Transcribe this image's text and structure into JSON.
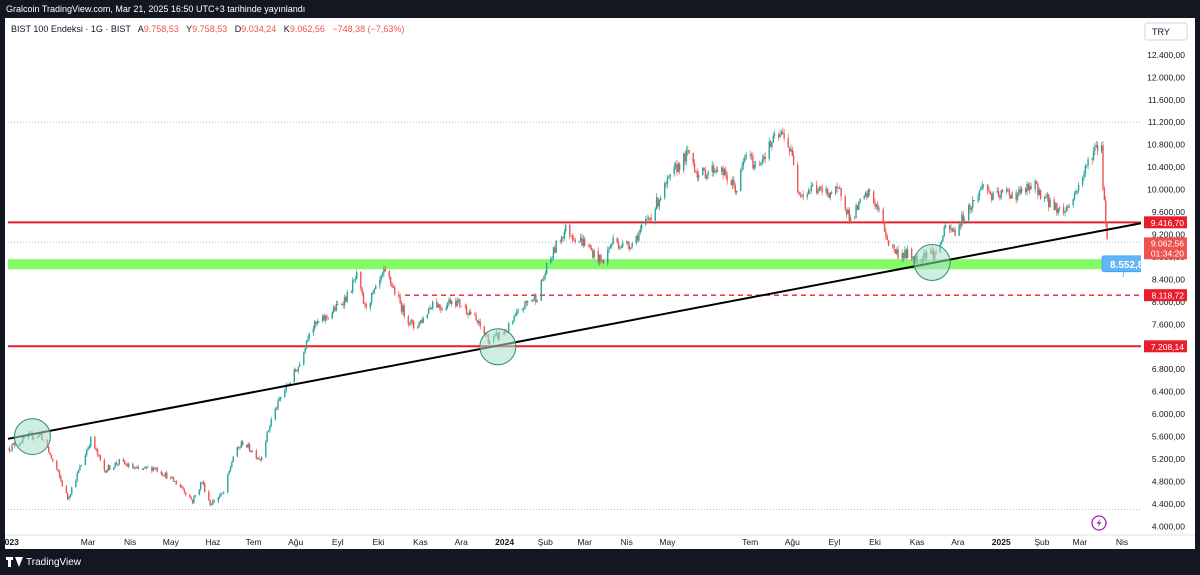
{
  "header": {
    "text": "Gralcoin TradingView.com, Mar 21, 2025 16:50 UTC+3 tarihinde yayınlandı"
  },
  "legend": {
    "symbol": "BIST 100 Endeksi · 1G · BIST",
    "o_label": "A",
    "o_value": "9.758,53",
    "h_label": "Y",
    "h_value": "9.758,53",
    "l_label": "D",
    "l_value": "9.034,24",
    "c_label": "K",
    "c_value": "9.062,56",
    "change": "−748,38 (−7,63%)"
  },
  "currency": "TRY",
  "footer": {
    "brand": "TradingView"
  },
  "colors": {
    "up": "#26a69a",
    "down": "#ef5350",
    "resistance": "#e91e2c",
    "support_zone": "#7CFC60",
    "label_blue": "#64b5f6",
    "circle_fill": "#a5e0c8",
    "trend": "#000000"
  },
  "chart_data": {
    "type": "candlestick",
    "yscale": "linear",
    "ylim": [
      3900,
      12700
    ],
    "y_ticks": [
      4000,
      4400,
      4800,
      5200,
      5600,
      6000,
      6400,
      6800,
      7200,
      7600,
      8000,
      8400,
      8800,
      9200,
      9600,
      10000,
      10400,
      10800,
      11200,
      11600,
      12000,
      12400
    ],
    "y_tick_labels": [
      "4.000,00",
      "4.400,00",
      "4.800,00",
      "5.200,00",
      "5.600,00",
      "6.000,00",
      "6.400,00",
      "6.800,00",
      "7.200,00",
      "7.600,00",
      "8.000,00",
      "8.400,00",
      "8.800,00",
      "9.200,00",
      "9.600,00",
      "10.000,00",
      "10.400,00",
      "10.800,00",
      "11.200,00",
      "11.600,00",
      "12.000,00",
      "12.400,00"
    ],
    "x_range": [
      "2023-01-01",
      "2025-04-15"
    ],
    "x_ticks": [
      {
        "date": "2023-01-02",
        "label": "2023",
        "bold": true
      },
      {
        "date": "2023-03-01",
        "label": "Mar"
      },
      {
        "date": "2023-04-01",
        "label": "Nis"
      },
      {
        "date": "2023-05-01",
        "label": "May"
      },
      {
        "date": "2023-06-01",
        "label": "Haz"
      },
      {
        "date": "2023-07-01",
        "label": "Tem"
      },
      {
        "date": "2023-08-01",
        "label": "Ağu"
      },
      {
        "date": "2023-09-01",
        "label": "Eyl"
      },
      {
        "date": "2023-10-01",
        "label": "Eki"
      },
      {
        "date": "2023-11-01",
        "label": "Kas"
      },
      {
        "date": "2023-12-01",
        "label": "Ara"
      },
      {
        "date": "2024-01-02",
        "label": "2024",
        "bold": true
      },
      {
        "date": "2024-02-01",
        "label": "Şub"
      },
      {
        "date": "2024-03-01",
        "label": "Mar"
      },
      {
        "date": "2024-04-01",
        "label": "Nis"
      },
      {
        "date": "2024-05-01",
        "label": "May"
      },
      {
        "date": "2024-07-01",
        "label": "Tem"
      },
      {
        "date": "2024-08-01",
        "label": "Ağu"
      },
      {
        "date": "2024-09-01",
        "label": "Eyl"
      },
      {
        "date": "2024-10-01",
        "label": "Eki"
      },
      {
        "date": "2024-11-01",
        "label": "Kas"
      },
      {
        "date": "2024-12-01",
        "label": "Ara"
      },
      {
        "date": "2025-01-02",
        "label": "2025",
        "bold": true
      },
      {
        "date": "2025-02-01",
        "label": "Şub"
      },
      {
        "date": "2025-03-01",
        "label": "Mar"
      },
      {
        "date": "2025-04-01",
        "label": "Nis"
      }
    ],
    "path_points": [
      [
        "2023-01-02",
        5400
      ],
      [
        "2023-01-16",
        5600
      ],
      [
        "2023-01-25",
        5640
      ],
      [
        "2023-02-06",
        5000
      ],
      [
        "2023-02-14",
        4500
      ],
      [
        "2023-02-24",
        5100
      ],
      [
        "2023-03-03",
        5550
      ],
      [
        "2023-03-13",
        5000
      ],
      [
        "2023-03-24",
        5150
      ],
      [
        "2023-04-07",
        5000
      ],
      [
        "2023-04-19",
        5050
      ],
      [
        "2023-04-28",
        4900
      ],
      [
        "2023-05-09",
        4700
      ],
      [
        "2023-05-17",
        4450
      ],
      [
        "2023-05-24",
        4800
      ],
      [
        "2023-05-30",
        4400
      ],
      [
        "2023-06-09",
        4600
      ],
      [
        "2023-06-16",
        5250
      ],
      [
        "2023-06-23",
        5500
      ],
      [
        "2023-07-06",
        5200
      ],
      [
        "2023-07-14",
        5900
      ],
      [
        "2023-07-21",
        6300
      ],
      [
        "2023-08-04",
        6900
      ],
      [
        "2023-08-11",
        7500
      ],
      [
        "2023-08-25",
        7750
      ],
      [
        "2023-09-08",
        8100
      ],
      [
        "2023-09-15",
        8450
      ],
      [
        "2023-09-21",
        7900
      ],
      [
        "2023-09-29",
        8200
      ],
      [
        "2023-10-05",
        8500
      ],
      [
        "2023-10-09",
        8400
      ],
      [
        "2023-10-20",
        7800
      ],
      [
        "2023-10-27",
        7550
      ],
      [
        "2023-11-03",
        7700
      ],
      [
        "2023-11-10",
        8000
      ],
      [
        "2023-11-17",
        7900
      ],
      [
        "2023-11-24",
        8050
      ],
      [
        "2023-12-01",
        7950
      ],
      [
        "2023-12-08",
        7800
      ],
      [
        "2023-12-15",
        7550
      ],
      [
        "2023-12-22",
        7300
      ],
      [
        "2024-01-04",
        7500
      ],
      [
        "2024-01-12",
        7800
      ],
      [
        "2024-01-19",
        8000
      ],
      [
        "2024-01-26",
        8100
      ],
      [
        "2024-02-02",
        8600
      ],
      [
        "2024-02-09",
        9000
      ],
      [
        "2024-02-16",
        9300
      ],
      [
        "2024-02-23",
        9150
      ],
      [
        "2024-03-01",
        9050
      ],
      [
        "2024-03-08",
        8850
      ],
      [
        "2024-03-14",
        8700
      ],
      [
        "2024-03-22",
        9100
      ],
      [
        "2024-03-29",
        9000
      ],
      [
        "2024-04-05",
        9050
      ],
      [
        "2024-04-19",
        9550
      ],
      [
        "2024-04-26",
        9900
      ],
      [
        "2024-05-08",
        10400
      ],
      [
        "2024-05-17",
        10650
      ],
      [
        "2024-05-24",
        10250
      ],
      [
        "2024-06-07",
        10400
      ],
      [
        "2024-06-14",
        10200
      ],
      [
        "2024-06-21",
        10000
      ],
      [
        "2024-06-28",
        10650
      ],
      [
        "2024-07-05",
        10400
      ],
      [
        "2024-07-12",
        10650
      ],
      [
        "2024-07-19",
        10900
      ],
      [
        "2024-07-26",
        11000
      ],
      [
        "2024-08-02",
        10500
      ],
      [
        "2024-08-05",
        10050
      ],
      [
        "2024-08-09",
        9900
      ],
      [
        "2024-08-16",
        10050
      ],
      [
        "2024-08-23",
        9950
      ],
      [
        "2024-09-06",
        9950
      ],
      [
        "2024-09-13",
        9450
      ],
      [
        "2024-09-20",
        9750
      ],
      [
        "2024-09-27",
        9950
      ],
      [
        "2024-10-04",
        9600
      ],
      [
        "2024-10-11",
        9050
      ],
      [
        "2024-10-18",
        8850
      ],
      [
        "2024-10-25",
        8850
      ],
      [
        "2024-11-01",
        8750
      ],
      [
        "2024-11-08",
        8900
      ],
      [
        "2024-11-15",
        8850
      ],
      [
        "2024-11-22",
        9300
      ],
      [
        "2024-11-29",
        9250
      ],
      [
        "2024-12-06",
        9550
      ],
      [
        "2024-12-13",
        9800
      ],
      [
        "2024-12-20",
        10100
      ],
      [
        "2024-12-27",
        9850
      ],
      [
        "2025-01-06",
        9950
      ],
      [
        "2025-01-13",
        9900
      ],
      [
        "2025-01-20",
        10000
      ],
      [
        "2025-01-27",
        10050
      ],
      [
        "2025-02-03",
        9850
      ],
      [
        "2025-02-10",
        9700
      ],
      [
        "2025-02-17",
        9600
      ],
      [
        "2025-02-24",
        9850
      ],
      [
        "2025-03-04",
        10300
      ],
      [
        "2025-03-11",
        10700
      ],
      [
        "2025-03-17",
        10800
      ],
      [
        "2025-03-18",
        10000
      ],
      [
        "2025-03-19",
        9900
      ],
      [
        "2025-03-21",
        9062.56
      ]
    ],
    "levels": [
      {
        "value": 9416.7,
        "label": "9.416,70",
        "style": "solid",
        "color": "#e91e2c"
      },
      {
        "value": 8118.72,
        "label": "8.118,72",
        "style": "dashed",
        "color": "#e91e2c"
      },
      {
        "value": 7208.14,
        "label": "7.208,14",
        "style": "solid",
        "color": "#e91e2c"
      }
    ],
    "dotted_levels": [
      11200,
      9062.56,
      4300
    ],
    "support_zone": [
      8580,
      8760
    ],
    "trendline": {
      "from": [
        "2023-01-01",
        5560
      ],
      "to": [
        "2025-04-15",
        9400
      ]
    },
    "circles": [
      {
        "date": "2023-01-19",
        "value": 5600
      },
      {
        "date": "2023-12-28",
        "value": 7200
      },
      {
        "date": "2024-11-12",
        "value": 8700
      }
    ],
    "last_price": {
      "label": "9.062,56",
      "countdown": "01:34:20"
    },
    "marker_label": "8.552,8"
  }
}
